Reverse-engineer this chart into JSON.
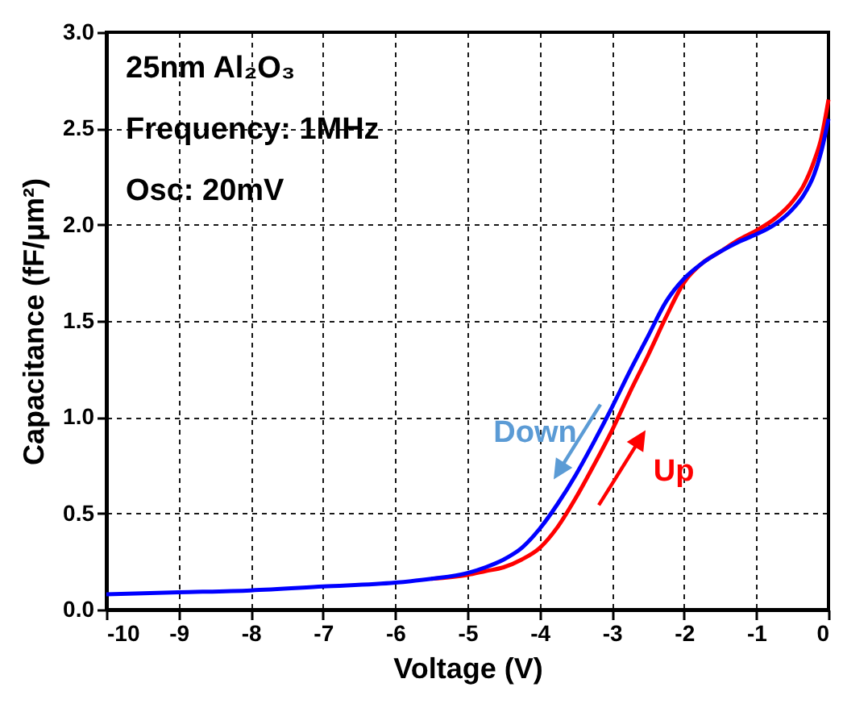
{
  "chart_data": {
    "type": "line",
    "xlabel": "Voltage (V)",
    "ylabel": "Capacitance (fF/μm²)",
    "annotations": [
      "25nm Al₂O₃",
      "Frequency: 1MHz",
      "Osc: 20mV",
      "Down",
      "Up"
    ],
    "x": [
      -10,
      -9,
      -8,
      -7,
      -6,
      -5.5,
      -5,
      -4.75,
      -4.5,
      -4.25,
      -4,
      -3.75,
      -3.5,
      -3.25,
      -3,
      -2.75,
      -2.5,
      -2.25,
      -2,
      -1.75,
      -1.5,
      -1.25,
      -1,
      -0.75,
      -0.5,
      -0.35,
      -0.2,
      -0.1,
      0
    ],
    "series": [
      {
        "color": "#0000ff",
        "values": [
          0.08,
          0.09,
          0.1,
          0.12,
          0.14,
          0.16,
          0.19,
          0.22,
          0.26,
          0.32,
          0.42,
          0.55,
          0.7,
          0.87,
          1.05,
          1.24,
          1.42,
          1.6,
          1.72,
          1.8,
          1.86,
          1.91,
          1.95,
          2.0,
          2.08,
          2.15,
          2.26,
          2.38,
          2.55
        ]
      },
      {
        "color": "#ff0000",
        "values": [
          null,
          null,
          null,
          null,
          null,
          0.16,
          0.18,
          0.2,
          0.22,
          0.26,
          0.32,
          0.43,
          0.58,
          0.75,
          0.93,
          1.13,
          1.32,
          1.52,
          1.7,
          1.8,
          1.86,
          1.92,
          1.97,
          2.03,
          2.12,
          2.2,
          2.33,
          2.45,
          2.65
        ]
      }
    ],
    "xlim": [
      -10,
      0
    ],
    "xticks": [
      -10,
      -9,
      -8,
      -7,
      -6,
      -5,
      -4,
      -3,
      -2,
      -1,
      0
    ],
    "ylim": [
      0,
      3.0
    ],
    "yticks": [
      {
        "value": 0,
        "label": "0.0"
      },
      0.5,
      {
        "value": 1,
        "label": "1.0"
      },
      1.5,
      {
        "value": 2,
        "label": "2.0"
      },
      2.5,
      {
        "value": 3,
        "label": "3.0"
      }
    ],
    "grid": true,
    "marker": "none",
    "line_style": "solid"
  }
}
